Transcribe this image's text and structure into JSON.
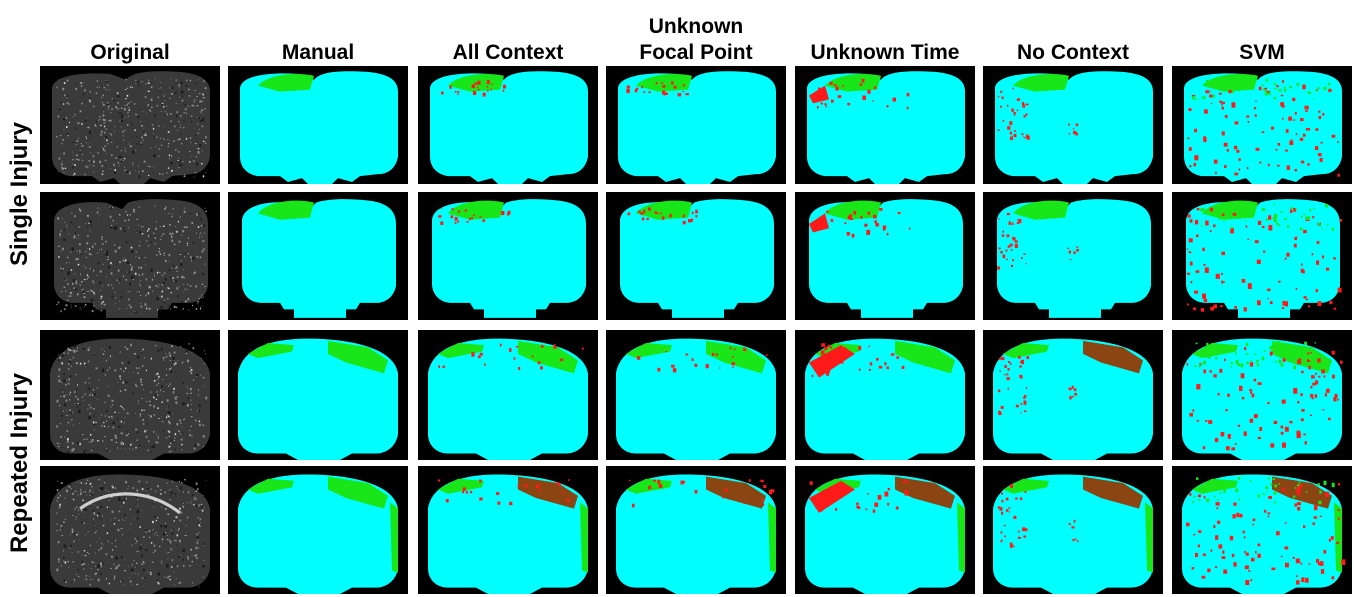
{
  "columns": [
    {
      "line1": "Original",
      "line2": ""
    },
    {
      "line1": "Manual",
      "line2": ""
    },
    {
      "line1": "All Context",
      "line2": ""
    },
    {
      "line1": "Unknown",
      "line2": "Focal Point"
    },
    {
      "line1": "Unknown Time",
      "line2": ""
    },
    {
      "line1": "No Context",
      "line2": ""
    },
    {
      "line1": "SVM",
      "line2": ""
    }
  ],
  "row_groups": [
    {
      "label": "Single Injury"
    },
    {
      "label": "Repeated Injury"
    }
  ],
  "legend_colors": {
    "background": "#000000",
    "healthy_tissue": "#00ffff",
    "lesion_manual": "#19e619",
    "misclassified": "#ff1a1a",
    "overlap": "#8b4513"
  }
}
